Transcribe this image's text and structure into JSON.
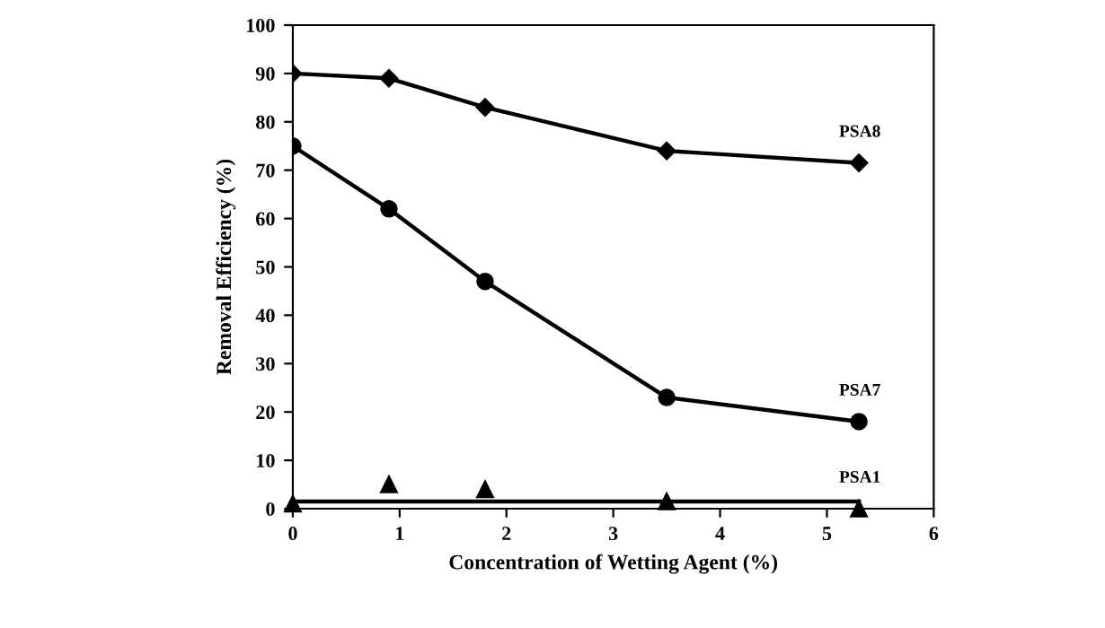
{
  "chart_data": {
    "type": "line",
    "xlabel": "Concentration of Wetting Agent (%)",
    "ylabel": "Removal Efficiency (%)",
    "xlim": [
      0,
      6
    ],
    "xticks": [
      0,
      1,
      2,
      3,
      4,
      5,
      6
    ],
    "ylim": [
      0,
      100
    ],
    "yticks": [
      0,
      10,
      20,
      30,
      40,
      50,
      60,
      70,
      80,
      90,
      100
    ],
    "grid": false,
    "legend": false,
    "line_style": "solid",
    "series": [
      {
        "name": "PSA8",
        "color": "#000000",
        "marker": "diamond",
        "x": [
          0,
          0.9,
          1.8,
          3.5,
          5.3
        ],
        "values": [
          90,
          89,
          83,
          74,
          71.5
        ]
      },
      {
        "name": "PSA7",
        "color": "#000000",
        "marker": "circle",
        "x": [
          0,
          0.9,
          1.8,
          3.5,
          5.3
        ],
        "values": [
          75,
          62,
          47,
          23,
          18
        ]
      },
      {
        "name": "PSA1",
        "type": "scatter",
        "color": "#000000",
        "marker": "triangle",
        "x": [
          0,
          0.9,
          1.8,
          3.5,
          5.3
        ],
        "values": [
          1,
          5,
          4,
          1.5,
          0
        ]
      },
      {
        "type": "line",
        "color": "#000000",
        "marker": "none",
        "x": [
          0,
          5.3
        ],
        "values": [
          1.5,
          1.5
        ]
      }
    ]
  }
}
